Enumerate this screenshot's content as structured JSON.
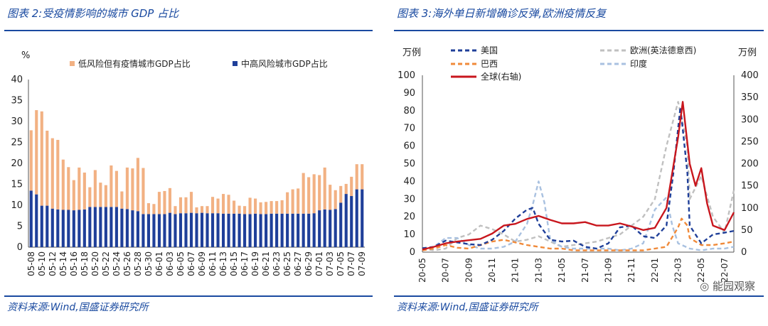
{
  "left_panel": {
    "title": "图表 2:受疫情影响的城市 GDP 占比",
    "source": "资料来源:Wind,国盛证券研究所"
  },
  "right_panel": {
    "title": "图表 3:海外单日新增确诊反弹,欧洲疫情反复",
    "source": "资料来源:Wind,国盛证券研究所",
    "watermark": "能园观察"
  },
  "chart_data": [
    {
      "type": "bar",
      "stacked": true,
      "unit_label": "%",
      "ylim": [
        0,
        40
      ],
      "yticks": [
        0,
        5,
        10,
        15,
        20,
        25,
        30,
        35,
        40
      ],
      "categories": [
        "05-08",
        "05-09",
        "05-10",
        "05-11",
        "05-12",
        "05-13",
        "05-14",
        "05-15",
        "05-16",
        "05-17",
        "05-18",
        "05-19",
        "05-20",
        "05-21",
        "05-22",
        "05-23",
        "05-24",
        "05-25",
        "05-26",
        "05-27",
        "05-28",
        "05-29",
        "05-30",
        "05-31",
        "06-01",
        "06-02",
        "06-03",
        "06-04",
        "06-05",
        "06-06",
        "06-07",
        "06-08",
        "06-09",
        "06-10",
        "06-11",
        "06-12",
        "06-13",
        "06-14",
        "06-15",
        "06-16",
        "06-17",
        "06-18",
        "06-19",
        "06-20",
        "06-21",
        "06-22",
        "06-23",
        "06-24",
        "06-25",
        "06-26",
        "06-27",
        "06-28",
        "06-29",
        "06-30",
        "07-01",
        "07-02",
        "07-03",
        "07-04",
        "07-05",
        "07-06",
        "07-07",
        "07-08",
        "07-09"
      ],
      "series": [
        {
          "name": "中高风险城市GDP占比",
          "color": "#1f3f99",
          "values": [
            13.5,
            12.6,
            9.9,
            9.9,
            9.2,
            9.0,
            8.9,
            8.9,
            8.8,
            8.9,
            9.0,
            9.6,
            9.6,
            9.6,
            9.6,
            9.6,
            9.6,
            9.2,
            9.1,
            8.8,
            8.6,
            7.9,
            7.9,
            7.9,
            7.9,
            7.9,
            8.2,
            7.9,
            8.1,
            8.1,
            8.2,
            8.1,
            8.2,
            8.1,
            8.1,
            8.1,
            8.0,
            8.0,
            8.0,
            8.0,
            7.9,
            7.9,
            8.0,
            7.9,
            7.9,
            8.0,
            8.0,
            8.0,
            8.0,
            8.0,
            8.0,
            8.0,
            8.0,
            8.1,
            8.8,
            9.0,
            8.9,
            9.1,
            10.6,
            12.7,
            12.2,
            13.8,
            13.8
          ]
        },
        {
          "name": "低风险但有疫情城市GDP占比",
          "color": "#f2b183",
          "values": [
            14.4,
            20.1,
            22.5,
            17.9,
            16.8,
            16.6,
            12.0,
            10.2,
            7.2,
            10.1,
            8.8,
            4.7,
            8.8,
            5.8,
            5.2,
            9.9,
            8.6,
            4.1,
            9.9,
            10.0,
            12.7,
            11.0,
            2.6,
            2.4,
            5.3,
            5.5,
            5.9,
            1.9,
            3.8,
            3.8,
            5.0,
            1.4,
            1.6,
            1.7,
            3.9,
            3.5,
            4.7,
            4.5,
            3.1,
            1.9,
            1.9,
            3.9,
            3.6,
            2.8,
            2.9,
            3.0,
            3.0,
            3.2,
            5.1,
            5.8,
            6.0,
            9.7,
            8.7,
            9.3,
            8.4,
            10.0,
            6.0,
            4.5,
            4.0,
            2.4,
            4.6,
            6.0,
            6.0
          ]
        }
      ]
    },
    {
      "type": "line",
      "left_unit": "万例",
      "right_unit": "万例",
      "ylim_left": [
        0,
        100
      ],
      "yticks_left": [
        0,
        10,
        20,
        30,
        40,
        50,
        60,
        70,
        80,
        90,
        100
      ],
      "ylim_right": [
        0,
        400
      ],
      "yticks_right": [
        0,
        50,
        100,
        150,
        200,
        250,
        300,
        350,
        400
      ],
      "x_labels": [
        "20-05",
        "20-07",
        "20-09",
        "20-11",
        "21-01",
        "21-03",
        "21-05",
        "21-07",
        "21-09",
        "21-11",
        "22-01",
        "22-03",
        "22-05",
        "22-07"
      ],
      "x_range": [
        0,
        26.8
      ],
      "series": [
        {
          "name": "美国",
          "axis": "left",
          "color": "#1f3f99",
          "style": "dashed",
          "points": [
            [
              0,
              2.2
            ],
            [
              1,
              3
            ],
            [
              2,
              6.5
            ],
            [
              3,
              5.5
            ],
            [
              4,
              4.5
            ],
            [
              5,
              4
            ],
            [
              6,
              7
            ],
            [
              7,
              12
            ],
            [
              8,
              19
            ],
            [
              9,
              24
            ],
            [
              9.5,
              25
            ],
            [
              10,
              16
            ],
            [
              11,
              7
            ],
            [
              12,
              6
            ],
            [
              13,
              6.5
            ],
            [
              14,
              3
            ],
            [
              15,
              2
            ],
            [
              16,
              5
            ],
            [
              17,
              14
            ],
            [
              18,
              15
            ],
            [
              19,
              9
            ],
            [
              20,
              8
            ],
            [
              21,
              15
            ],
            [
              21.6,
              45
            ],
            [
              22.2,
              82
            ],
            [
              22.8,
              45
            ],
            [
              23,
              15
            ],
            [
              24,
              5
            ],
            [
              25,
              10
            ],
            [
              26,
              11
            ],
            [
              26.8,
              12
            ]
          ]
        },
        {
          "name": "巴西",
          "axis": "left",
          "color": "#f08a3a",
          "style": "dashed",
          "points": [
            [
              0,
              1
            ],
            [
              1,
              2
            ],
            [
              2,
              4
            ],
            [
              3,
              2.5
            ],
            [
              4,
              2
            ],
            [
              5,
              4
            ],
            [
              6,
              6
            ],
            [
              7,
              7
            ],
            [
              8,
              5.5
            ],
            [
              9,
              4
            ],
            [
              10,
              3
            ],
            [
              11,
              2
            ],
            [
              12,
              2
            ],
            [
              13,
              1
            ],
            [
              14,
              1
            ],
            [
              15,
              1
            ],
            [
              16,
              1
            ],
            [
              17,
              1
            ],
            [
              18,
              1
            ],
            [
              19,
              1
            ],
            [
              20,
              2
            ],
            [
              21,
              3
            ],
            [
              22,
              14
            ],
            [
              22.3,
              19
            ],
            [
              22.8,
              15
            ],
            [
              23,
              8
            ],
            [
              24,
              4
            ],
            [
              25,
              4
            ],
            [
              26,
              5
            ],
            [
              26.8,
              6
            ]
          ]
        },
        {
          "name": "欧洲(英法德意西)",
          "axis": "left",
          "color": "#c0c0c0",
          "style": "dashed",
          "points": [
            [
              0,
              2
            ],
            [
              1,
              1
            ],
            [
              2,
              2
            ],
            [
              3,
              8
            ],
            [
              4,
              10
            ],
            [
              5,
              15
            ],
            [
              6,
              13
            ],
            [
              7,
              10
            ],
            [
              8,
              6
            ],
            [
              9,
              7
            ],
            [
              10,
              9
            ],
            [
              11,
              6
            ],
            [
              12,
              3
            ],
            [
              13,
              4
            ],
            [
              14,
              5
            ],
            [
              15,
              6
            ],
            [
              16,
              8
            ],
            [
              17,
              10
            ],
            [
              18,
              15
            ],
            [
              19,
              20
            ],
            [
              20,
              30
            ],
            [
              21,
              60
            ],
            [
              22,
              85
            ],
            [
              22.8,
              60
            ],
            [
              23,
              30
            ],
            [
              24,
              43
            ],
            [
              25,
              20
            ],
            [
              26,
              11
            ],
            [
              26.8,
              35
            ]
          ]
        },
        {
          "name": "印度",
          "axis": "left",
          "color": "#a9c1e0",
          "style": "dashed",
          "points": [
            [
              0,
              1
            ],
            [
              1,
              3
            ],
            [
              2,
              8
            ],
            [
              3,
              8
            ],
            [
              4,
              4
            ],
            [
              5,
              2
            ],
            [
              6,
              2
            ],
            [
              7,
              3
            ],
            [
              8,
              6
            ],
            [
              9,
              16
            ],
            [
              9.5,
              27
            ],
            [
              10,
              40
            ],
            [
              10.5,
              28
            ],
            [
              11,
              7
            ],
            [
              12,
              3
            ],
            [
              13,
              2
            ],
            [
              14,
              2
            ],
            [
              15,
              2
            ],
            [
              16,
              2
            ],
            [
              17,
              1
            ],
            [
              18,
              2
            ],
            [
              19,
              5
            ],
            [
              20,
              24
            ],
            [
              21,
              31
            ],
            [
              21.5,
              15
            ],
            [
              22,
              5
            ],
            [
              23,
              2
            ],
            [
              24,
              1
            ],
            [
              25,
              2
            ],
            [
              26,
              2
            ],
            [
              26.8,
              3
            ]
          ]
        },
        {
          "name": "全球(右轴)",
          "axis": "right",
          "color": "#c8161d",
          "style": "solid",
          "points": [
            [
              0,
              6
            ],
            [
              1,
              12
            ],
            [
              2,
              20
            ],
            [
              3,
              24
            ],
            [
              4,
              27
            ],
            [
              5,
              30
            ],
            [
              6,
              42
            ],
            [
              7,
              60
            ],
            [
              8,
              64
            ],
            [
              9,
              75
            ],
            [
              10,
              82
            ],
            [
              11,
              73
            ],
            [
              12,
              65
            ],
            [
              13,
              65
            ],
            [
              14,
              68
            ],
            [
              15,
              60
            ],
            [
              16,
              60
            ],
            [
              17,
              65
            ],
            [
              18,
              58
            ],
            [
              19,
              50
            ],
            [
              20,
              55
            ],
            [
              21,
              100
            ],
            [
              22,
              260
            ],
            [
              22.4,
              340
            ],
            [
              23,
              200
            ],
            [
              23.5,
              150
            ],
            [
              24,
              190
            ],
            [
              24.5,
              110
            ],
            [
              25,
              60
            ],
            [
              26,
              50
            ],
            [
              26.8,
              90
            ]
          ]
        }
      ]
    }
  ]
}
